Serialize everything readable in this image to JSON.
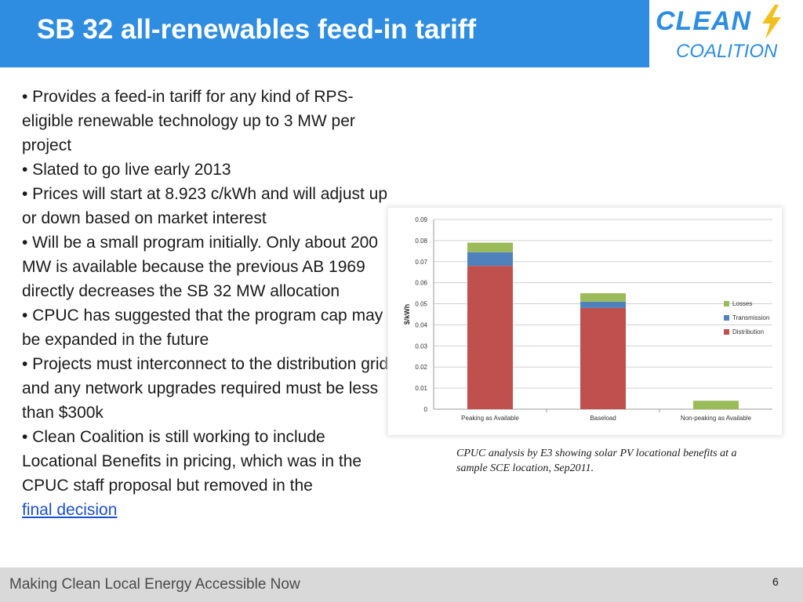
{
  "slide": {
    "title": "SB 32 all-renewables feed-in tariff",
    "logo": {
      "line1": "CLEAN",
      "line2": "COALITION",
      "bolt_icon": "lightning-bolt-icon",
      "color": "#2e8de0",
      "bolt_color": "#f2c01e"
    },
    "accent_color": "#2e8de0",
    "bullets": [
      "• Provides a feed-in tariff for any kind of RPS-eligible renewable technology up to 3 MW per project",
      "• Slated to go live early 2013",
      "• Prices will start at 8.923 c/kWh and will adjust up or down based on market interest",
      "• Will be a small program initially. Only about 200 MW is available because the previous AB 1969 directly decreases the SB 32 MW allocation",
      "• CPUC has suggested that the program cap may be expanded in the future",
      "• Projects must interconnect to the distribution grid and any network upgrades required must be less than $300k",
      "• Clean Coalition is still working to include Locational Benefits in pricing, which was in the CPUC staff proposal but removed in the"
    ],
    "link_text": "final decision",
    "caption": "CPUC analysis by E3 showing solar PV locational benefits at a sample SCE location, Sep2011.",
    "footer": "Making Clean Local Energy Accessible Now",
    "page_number": "6"
  },
  "chart_data": {
    "type": "bar",
    "stacked": true,
    "categories": [
      "Peaking as Available",
      "Baseload",
      "Non-peaking as Available"
    ],
    "series": [
      {
        "name": "Distribution",
        "values": [
          0.068,
          0.048,
          0.0
        ],
        "color": "#c0504d"
      },
      {
        "name": "Transmission",
        "values": [
          0.0065,
          0.003,
          0.0
        ],
        "color": "#4f81bd"
      },
      {
        "name": "Losses",
        "values": [
          0.0045,
          0.004,
          0.004
        ],
        "color": "#9bbb59"
      }
    ],
    "ylabel": "$/kWh",
    "ylim": [
      0,
      0.09
    ],
    "yticks": [
      "0",
      "0.01",
      "0.02",
      "0.03",
      "0.04",
      "0.05",
      "0.06",
      "0.07",
      "0.08",
      "0.09"
    ],
    "grid": true,
    "legend_position": "right"
  }
}
